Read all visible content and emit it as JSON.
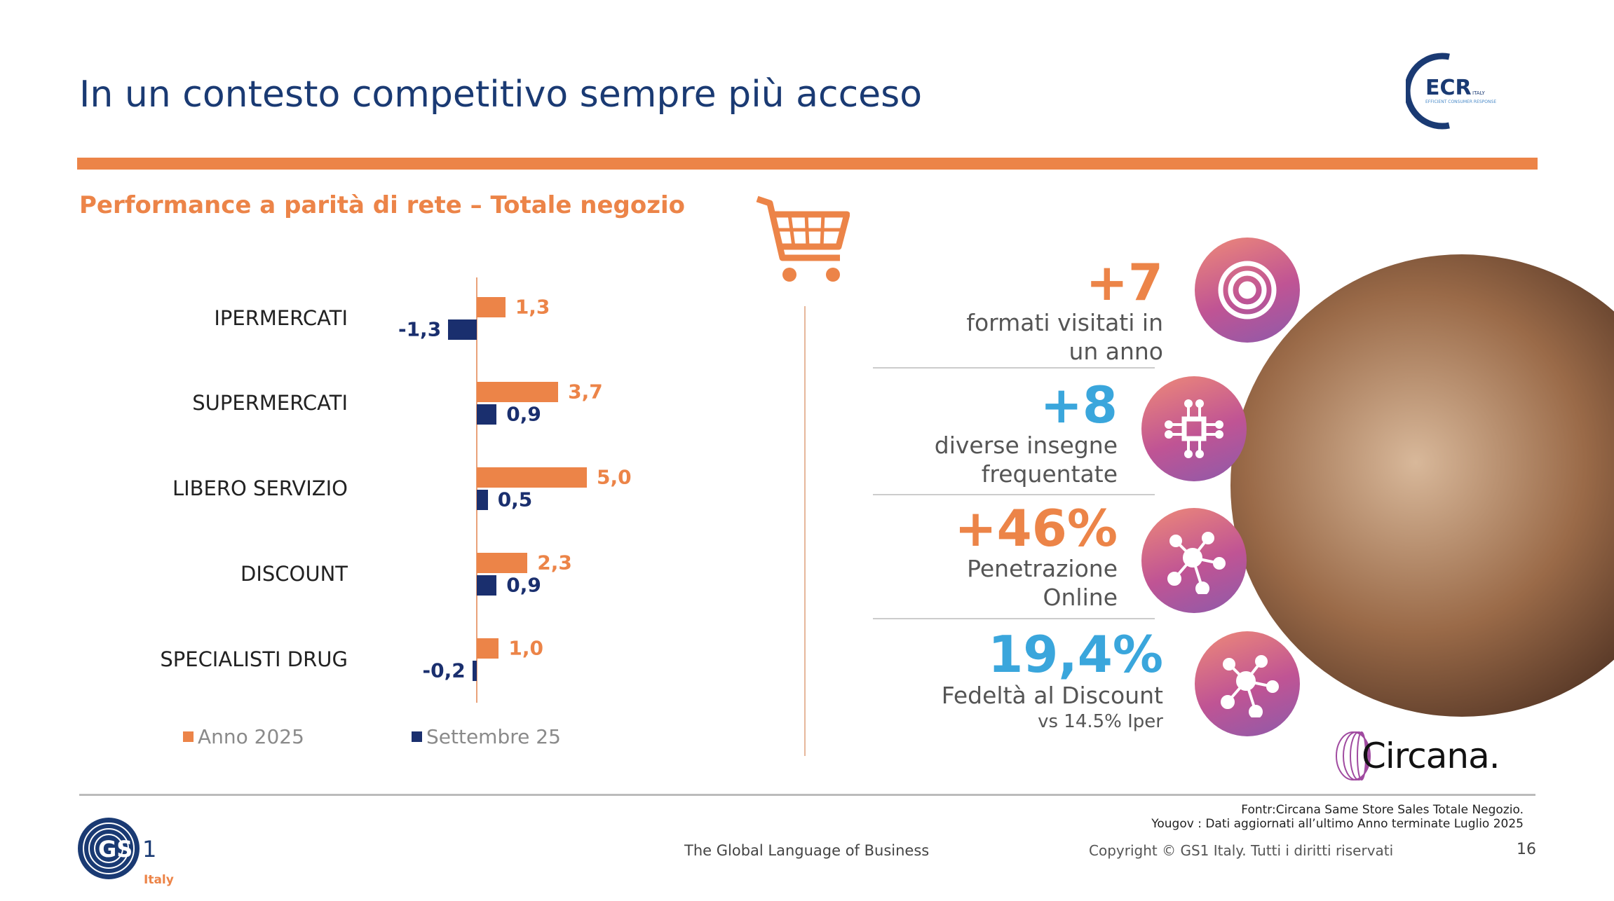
{
  "title": "In un contesto competitivo sempre più acceso",
  "subtitle": "Performance a parità di rete – Totale negozio",
  "logos": {
    "ecr": "ECR ITALY EFFICIENT CONSUMER RESPONSE",
    "circana": "Circana.",
    "gs1": "GS1 Italy"
  },
  "colors": {
    "orange": "#ec8448",
    "navy": "#1a2f6e",
    "blue": "#3aa6dc",
    "title": "#1a3a73"
  },
  "chart_data": {
    "type": "bar",
    "orientation": "horizontal",
    "categories": [
      "IPERMERCATI",
      "SUPERMERCATI",
      "LIBERO SERVIZIO",
      "DISCOUNT",
      "SPECIALISTI DRUG"
    ],
    "series": [
      {
        "name": "Anno 2025",
        "color": "#ec8448",
        "values": [
          1.3,
          3.7,
          5.0,
          2.3,
          1.0
        ],
        "labels": [
          "1,3",
          "3,7",
          "5,0",
          "2,3",
          "1,0"
        ]
      },
      {
        "name": "Settembre 25",
        "color": "#1a2f6e",
        "values": [
          -1.3,
          0.9,
          0.5,
          0.9,
          -0.2
        ],
        "labels": [
          "-1,3",
          "0,9",
          "0,5",
          "0,9",
          "-0,2"
        ]
      }
    ],
    "legend": "bottom"
  },
  "stats": [
    {
      "value": "+7",
      "desc1": "formati visitati in",
      "desc2": "un anno",
      "color": "#ec8448",
      "icon": "target-icon"
    },
    {
      "value": "+8",
      "desc1": "diverse insegne",
      "desc2": "frequentate",
      "color": "#3aa6dc",
      "icon": "circuit-chip-icon"
    },
    {
      "value": "+46%",
      "desc1": "Penetrazione",
      "desc2": "Online",
      "color": "#ec8448",
      "icon": "network-icon"
    },
    {
      "value": "19,4%",
      "desc1": "Fedeltà al Discount",
      "desc2": "vs  14.5% Iper",
      "color": "#3aa6dc",
      "icon": "network-icon"
    }
  ],
  "footer": {
    "source1": "Fontr:Circana Same Store Sales Totale Negozio.",
    "source2": "Yougov : Dati aggiornati all’ultimo Anno terminate   Luglio 2025",
    "tagline": "The Global Language of Business",
    "copyright": "Copyright © GS1 Italy. Tutti i diritti riservati",
    "page": "16"
  }
}
